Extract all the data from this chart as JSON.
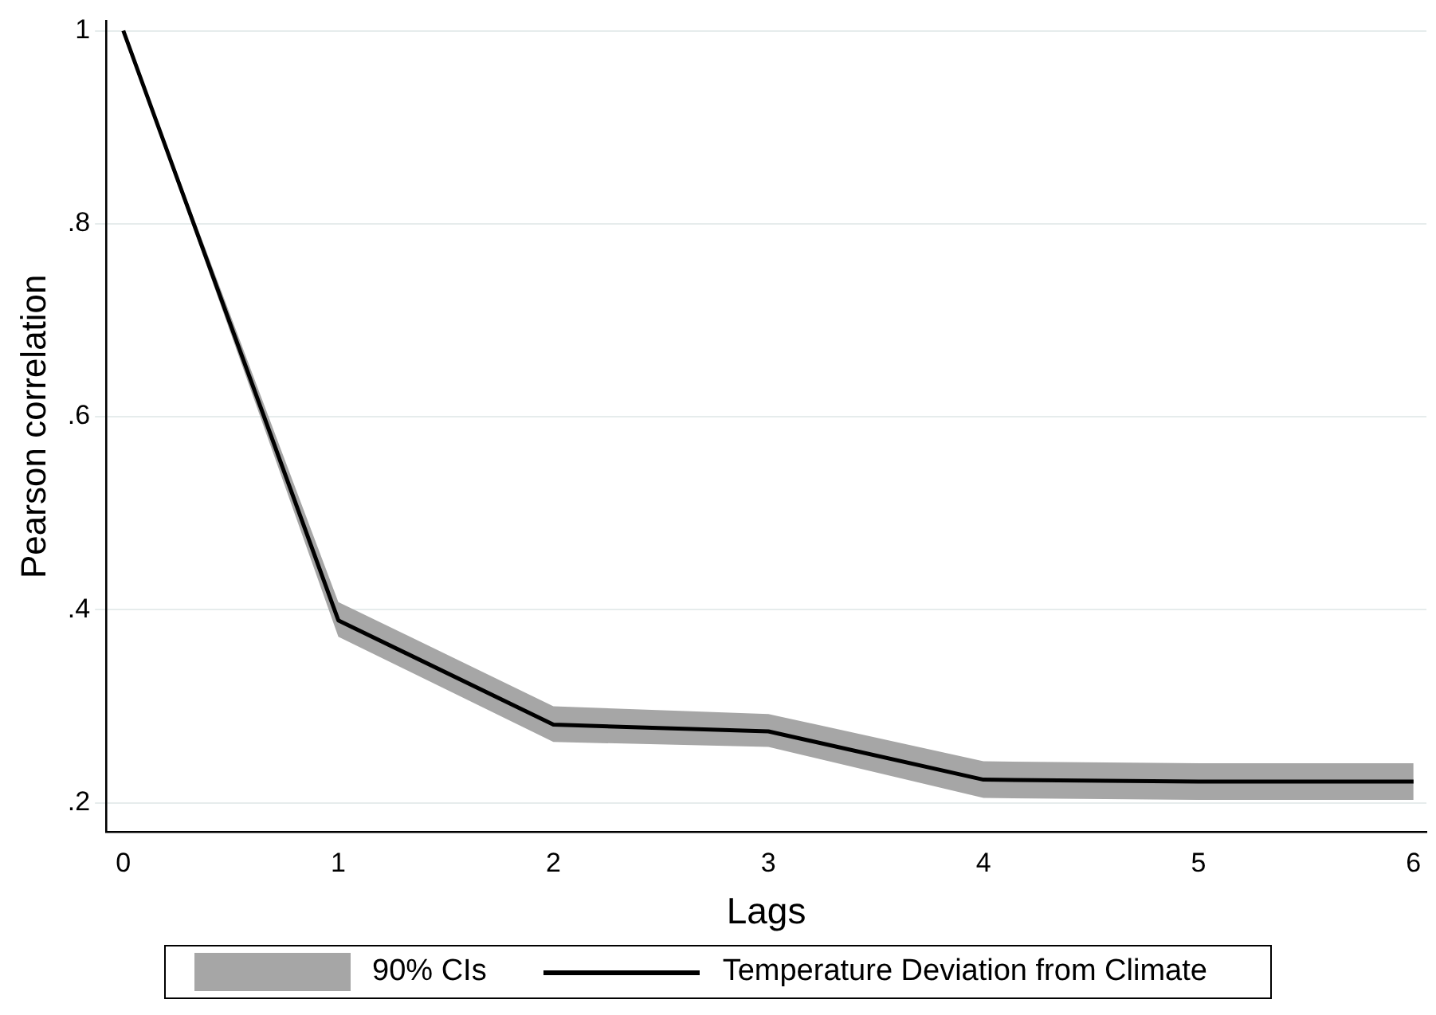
{
  "chart_data": {
    "type": "line",
    "xlabel": "Lags",
    "ylabel": "Pearson correlation",
    "x": [
      0,
      1,
      2,
      3,
      4,
      5,
      6
    ],
    "series": [
      {
        "name": "Temperature Deviation from Climate",
        "color": "#000000",
        "values": [
          1.0,
          0.389,
          0.281,
          0.274,
          0.224,
          0.222,
          0.222
        ],
        "lower": [
          1.0,
          0.372,
          0.263,
          0.258,
          0.205,
          0.203,
          0.203
        ],
        "upper": [
          1.0,
          0.408,
          0.3,
          0.292,
          0.243,
          0.241,
          0.241
        ]
      }
    ],
    "annotations": [
      "90% CIs"
    ],
    "xlim": [
      -0.08,
      6.06
    ],
    "xticks": [
      0,
      1,
      2,
      3,
      4,
      5,
      6
    ],
    "ylim": [
      0.17,
      1.01
    ],
    "yticks": [
      {
        "value": 0.2,
        "label": ".2"
      },
      {
        "value": 0.4,
        "label": ".4"
      },
      {
        "value": 0.6,
        "label": ".6"
      },
      {
        "value": 0.8,
        "label": ".8"
      },
      {
        "value": 1,
        "label": "1"
      }
    ],
    "grid": "y",
    "legend": "bottom",
    "marker": "none",
    "line_style": "solid"
  }
}
